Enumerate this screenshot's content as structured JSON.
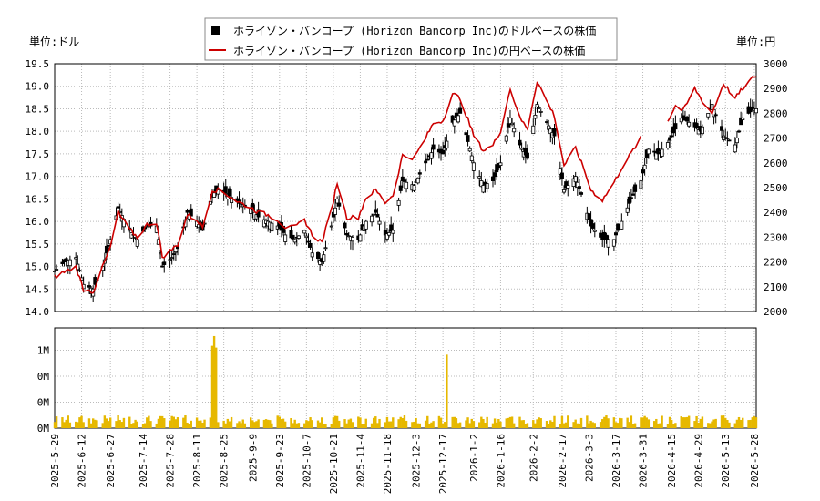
{
  "legend": {
    "usd_label": "ホライゾン・バンコープ (Horizon Bancorp Inc)のドルベースの株価",
    "jpy_label": "ホライゾン・バンコープ (Horizon Bancorp Inc)の円ベースの株価",
    "placement": "top-center"
  },
  "units": {
    "left": "単位:ドル",
    "right": "単位:円"
  },
  "colors": {
    "candle": "#000000",
    "yen_line": "#cc0000",
    "volume": "#e6b800",
    "grid": "#bbbbbb"
  },
  "chart_data": [
    {
      "type": "candlestick",
      "name": "price",
      "x_range": [
        "2025-05-29",
        "2026-05-29"
      ],
      "ylim_left": [
        14.0,
        19.5
      ],
      "yticks_left": [
        "14.0",
        "14.5",
        "15.0",
        "15.5",
        "16.0",
        "16.5",
        "17.0",
        "17.5",
        "18.0",
        "18.5",
        "19.0",
        "19.5"
      ],
      "ylim_right": [
        2000,
        3000
      ],
      "yticks_right": [
        "2000",
        "2100",
        "2200",
        "2300",
        "2400",
        "2500",
        "2600",
        "2700",
        "2800",
        "2900",
        "3000"
      ],
      "grid": true,
      "series": [
        {
          "name": "usd_close",
          "dates": [
            "2025-05-29",
            "2025-06-03",
            "2025-06-09",
            "2025-06-13",
            "2025-06-18",
            "2025-06-23",
            "2025-06-27",
            "2025-07-01",
            "2025-07-07",
            "2025-07-11",
            "2025-07-16",
            "2025-07-21",
            "2025-07-24",
            "2025-07-29",
            "2025-08-01",
            "2025-08-06",
            "2025-08-11",
            "2025-08-14",
            "2025-08-19",
            "2025-08-22",
            "2025-08-27",
            "2025-09-02",
            "2025-09-08",
            "2025-09-12",
            "2025-09-17",
            "2025-09-22",
            "2025-09-26",
            "2025-10-01",
            "2025-10-06",
            "2025-10-10",
            "2025-10-15",
            "2025-10-20",
            "2025-10-23",
            "2025-10-28",
            "2025-11-03",
            "2025-11-07",
            "2025-11-12",
            "2025-11-17",
            "2025-11-21",
            "2025-11-26",
            "2025-12-02",
            "2025-12-08",
            "2025-12-12",
            "2025-12-17",
            "2025-12-22",
            "2025-12-26",
            "2026-01-02",
            "2026-01-07",
            "2026-01-12",
            "2026-01-16",
            "2026-01-21",
            "2026-01-26",
            "2026-01-30",
            "2026-02-04",
            "2026-02-09",
            "2026-02-13",
            "2026-02-18",
            "2026-02-24",
            "2026-02-27",
            "2026-03-04",
            "2026-03-10",
            "2026-03-16",
            "2026-03-20",
            "2026-03-25",
            "2026-03-30",
            "2026-04-03",
            "2026-04-08",
            "2026-04-14",
            "2026-04-20",
            "2026-04-24",
            "2026-04-30",
            "2026-05-06",
            "2026-05-12",
            "2026-05-18",
            "2026-05-22",
            "2026-05-28"
          ],
          "values": [
            14.9,
            15.1,
            15.2,
            14.6,
            14.5,
            15.0,
            15.6,
            16.3,
            15.8,
            15.6,
            15.9,
            15.9,
            15.0,
            15.2,
            15.4,
            16.2,
            16.0,
            15.8,
            16.6,
            16.7,
            16.6,
            16.4,
            16.3,
            16.1,
            16.0,
            15.9,
            15.7,
            15.6,
            15.8,
            15.3,
            15.1,
            15.9,
            16.5,
            15.7,
            15.6,
            16.0,
            16.2,
            15.7,
            15.8,
            16.9,
            16.8,
            17.3,
            17.6,
            17.5,
            18.2,
            18.4,
            17.3,
            16.8,
            16.9,
            17.3,
            18.3,
            17.7,
            17.4,
            18.6,
            18.2,
            17.9,
            16.7,
            17.0,
            16.6,
            15.9,
            15.6,
            15.6,
            16.0,
            16.5,
            16.9,
            17.6,
            17.5,
            17.8,
            18.3,
            18.2,
            18.0,
            18.6,
            17.9,
            17.7,
            18.3,
            18.5
          ]
        },
        {
          "name": "jpy_close",
          "dates": [
            "2025-05-29",
            "2025-06-03",
            "2025-06-09",
            "2025-06-13",
            "2025-06-18",
            "2025-06-23",
            "2025-06-27",
            "2025-07-01",
            "2025-07-07",
            "2025-07-11",
            "2025-07-16",
            "2025-07-21",
            "2025-07-24",
            "2025-07-29",
            "2025-08-01",
            "2025-08-06",
            "2025-08-11",
            "2025-08-14",
            "2025-08-19",
            "2025-08-22",
            "2025-08-27",
            "2025-09-02",
            "2025-09-08",
            "2025-09-12",
            "2025-09-17",
            "2025-09-22",
            "2025-09-26",
            "2025-10-01",
            "2025-10-06",
            "2025-10-10",
            "2025-10-15",
            "2025-10-20",
            "2025-10-23",
            "2025-10-28",
            "2025-11-03",
            "2025-11-07",
            "2025-11-12",
            "2025-11-17",
            "2025-11-21",
            "2025-11-26",
            "2025-12-02",
            "2025-12-08",
            "2025-12-12",
            "2025-12-17",
            "2025-12-22",
            "2025-12-26",
            "2026-01-02",
            "2026-01-07",
            "2026-01-12",
            "2026-01-16",
            "2026-01-21",
            "2026-01-26",
            "2026-01-30",
            "2026-02-04",
            "2026-02-09",
            "2026-02-13",
            "2026-02-18",
            "2026-02-24",
            "2026-02-27",
            "2026-03-04",
            "2026-03-10",
            "2026-03-16",
            "2026-03-20",
            "2026-03-25",
            "2026-03-30",
            "2026-04-13",
            "2026-04-17",
            "2026-04-21",
            "2026-04-27",
            "2026-05-01",
            "2026-05-06",
            "2026-05-12",
            "2026-05-18",
            "2026-05-22",
            "2026-05-28"
          ],
          "values": [
            2140,
            2160,
            2180,
            2090,
            2080,
            2180,
            2260,
            2400,
            2330,
            2300,
            2350,
            2360,
            2220,
            2250,
            2270,
            2390,
            2370,
            2340,
            2490,
            2490,
            2470,
            2440,
            2420,
            2400,
            2390,
            2370,
            2340,
            2340,
            2370,
            2310,
            2280,
            2410,
            2520,
            2380,
            2380,
            2460,
            2490,
            2440,
            2470,
            2630,
            2620,
            2700,
            2760,
            2770,
            2880,
            2860,
            2710,
            2650,
            2670,
            2730,
            2900,
            2780,
            2740,
            2930,
            2850,
            2790,
            2590,
            2660,
            2600,
            2490,
            2450,
            2520,
            2580,
            2640,
            2700,
            2770,
            2830,
            2810,
            2900,
            2850,
            2800,
            2920,
            2860,
            2900,
            2950
          ]
        },
        {
          "name": "volume",
          "unit": "shares",
          "yticks": [
            "0M",
            "0M",
            "0M",
            "1M"
          ],
          "peak_date": "2025-08-20",
          "peak_value": 1500000,
          "second_peak_date": "2025-12-19",
          "second_peak_value": 1100000,
          "typical_value": 120000
        }
      ],
      "x_ticks": [
        "2025-5-29",
        "2025-6-12",
        "2025-6-27",
        "2025-7-14",
        "2025-7-28",
        "2025-8-11",
        "2025-8-25",
        "2025-9-9",
        "2025-9-23",
        "2025-10-7",
        "2025-10-21",
        "2025-11-4",
        "2025-11-18",
        "2025-12-3",
        "2025-12-17",
        "2026-1-2",
        "2026-1-16",
        "2026-2-2",
        "2026-2-17",
        "2026-3-3",
        "2026-3-17",
        "2026-3-31",
        "2026-4-15",
        "2026-4-29",
        "2026-5-13",
        "2026-5-28"
      ]
    }
  ]
}
